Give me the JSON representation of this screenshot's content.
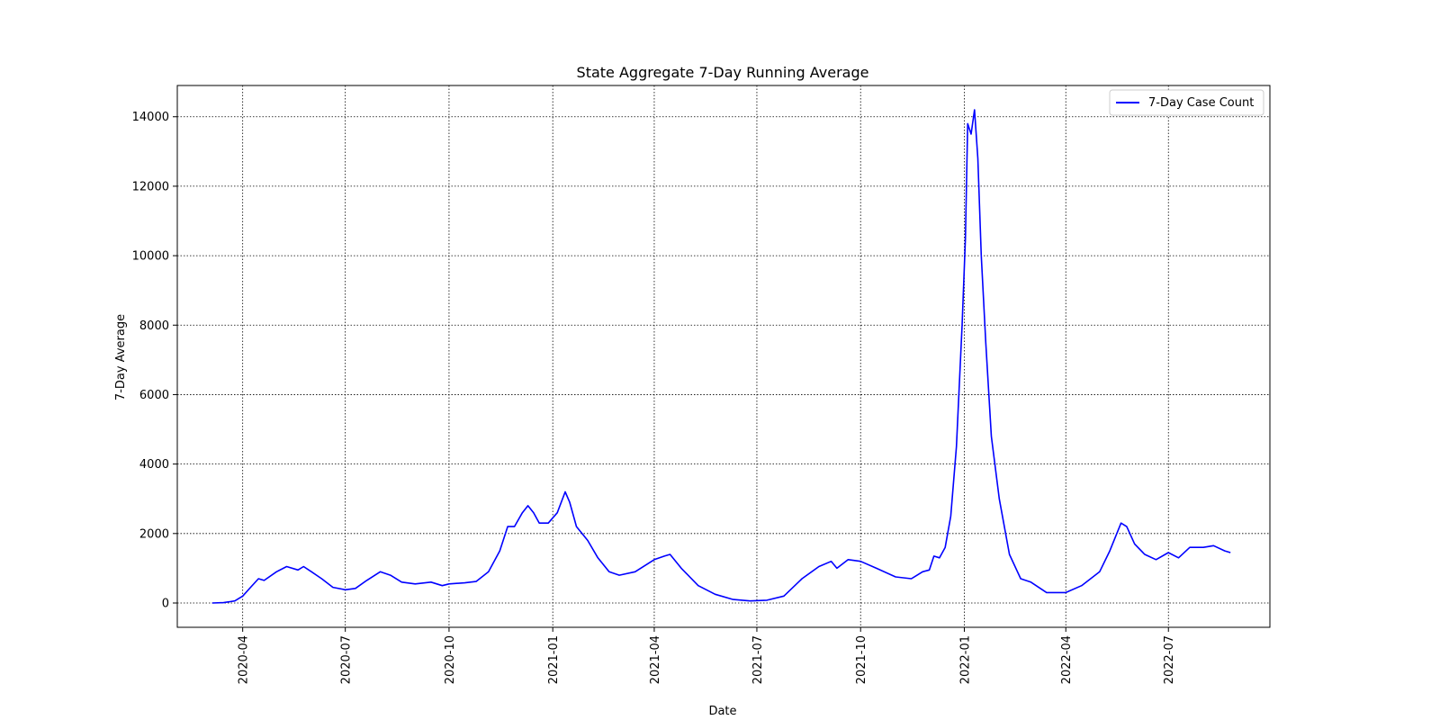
{
  "chart_data": {
    "type": "line",
    "title": "State Aggregate 7-Day Running Average",
    "xlabel": "Date",
    "ylabel": "7-Day Average",
    "xlim": [
      "2020-02-03",
      "2022-09-29"
    ],
    "ylim": [
      -700,
      14900
    ],
    "x_ticks": [
      "2020-04",
      "2020-07",
      "2020-10",
      "2021-01",
      "2021-04",
      "2021-07",
      "2021-10",
      "2022-01",
      "2022-04",
      "2022-07"
    ],
    "y_ticks": [
      0,
      2000,
      4000,
      6000,
      8000,
      10000,
      12000,
      14000
    ],
    "grid": true,
    "legend_position": "top-right",
    "colors": {
      "series": "#0000ff",
      "grid": "#000000"
    },
    "series": [
      {
        "name": "7-Day Case Count",
        "x": [
          "2020-03-05",
          "2020-03-15",
          "2020-03-25",
          "2020-04-01",
          "2020-04-08",
          "2020-04-15",
          "2020-04-20",
          "2020-05-01",
          "2020-05-10",
          "2020-05-20",
          "2020-05-25",
          "2020-06-01",
          "2020-06-10",
          "2020-06-20",
          "2020-07-01",
          "2020-07-10",
          "2020-07-20",
          "2020-08-01",
          "2020-08-10",
          "2020-08-20",
          "2020-09-01",
          "2020-09-15",
          "2020-09-25",
          "2020-10-01",
          "2020-10-15",
          "2020-10-25",
          "2020-11-05",
          "2020-11-15",
          "2020-11-22",
          "2020-11-28",
          "2020-12-05",
          "2020-12-10",
          "2020-12-15",
          "2020-12-20",
          "2020-12-28",
          "2021-01-05",
          "2021-01-12",
          "2021-01-16",
          "2021-01-22",
          "2021-02-01",
          "2021-02-10",
          "2021-02-20",
          "2021-03-01",
          "2021-03-15",
          "2021-04-01",
          "2021-04-10",
          "2021-04-15",
          "2021-04-25",
          "2021-05-10",
          "2021-05-25",
          "2021-06-10",
          "2021-06-25",
          "2021-07-10",
          "2021-07-25",
          "2021-08-10",
          "2021-08-25",
          "2021-09-05",
          "2021-09-10",
          "2021-09-20",
          "2021-10-01",
          "2021-10-15",
          "2021-11-01",
          "2021-11-15",
          "2021-11-25",
          "2021-12-01",
          "2021-12-05",
          "2021-12-10",
          "2021-12-15",
          "2021-12-20",
          "2021-12-25",
          "2021-12-30",
          "2022-01-02",
          "2022-01-04",
          "2022-01-07",
          "2022-01-10",
          "2022-01-13",
          "2022-01-16",
          "2022-01-20",
          "2022-01-25",
          "2022-02-01",
          "2022-02-10",
          "2022-02-20",
          "2022-03-01",
          "2022-03-15",
          "2022-04-01",
          "2022-04-15",
          "2022-05-01",
          "2022-05-10",
          "2022-05-20",
          "2022-05-25",
          "2022-06-01",
          "2022-06-10",
          "2022-06-20",
          "2022-07-01",
          "2022-07-10",
          "2022-07-20",
          "2022-08-01",
          "2022-08-10",
          "2022-08-20",
          "2022-08-25"
        ],
        "y": [
          0,
          10,
          60,
          200,
          450,
          700,
          650,
          900,
          1050,
          950,
          1050,
          900,
          700,
          450,
          380,
          420,
          650,
          900,
          800,
          600,
          550,
          600,
          500,
          550,
          580,
          620,
          900,
          1500,
          2200,
          2200,
          2600,
          2800,
          2600,
          2300,
          2300,
          2600,
          3200,
          2900,
          2200,
          1800,
          1300,
          900,
          800,
          900,
          1250,
          1350,
          1400,
          1000,
          500,
          250,
          100,
          60,
          80,
          200,
          700,
          1050,
          1200,
          1000,
          1250,
          1200,
          1000,
          750,
          700,
          900,
          950,
          1350,
          1300,
          1600,
          2500,
          4500,
          8000,
          10500,
          13800,
          13500,
          14200,
          12800,
          10000,
          7500,
          4800,
          3000,
          1400,
          700,
          600,
          300,
          300,
          500,
          900,
          1500,
          2300,
          2200,
          1700,
          1400,
          1250,
          1450,
          1300,
          1600,
          1600,
          1650,
          1500,
          1450
        ]
      }
    ]
  }
}
